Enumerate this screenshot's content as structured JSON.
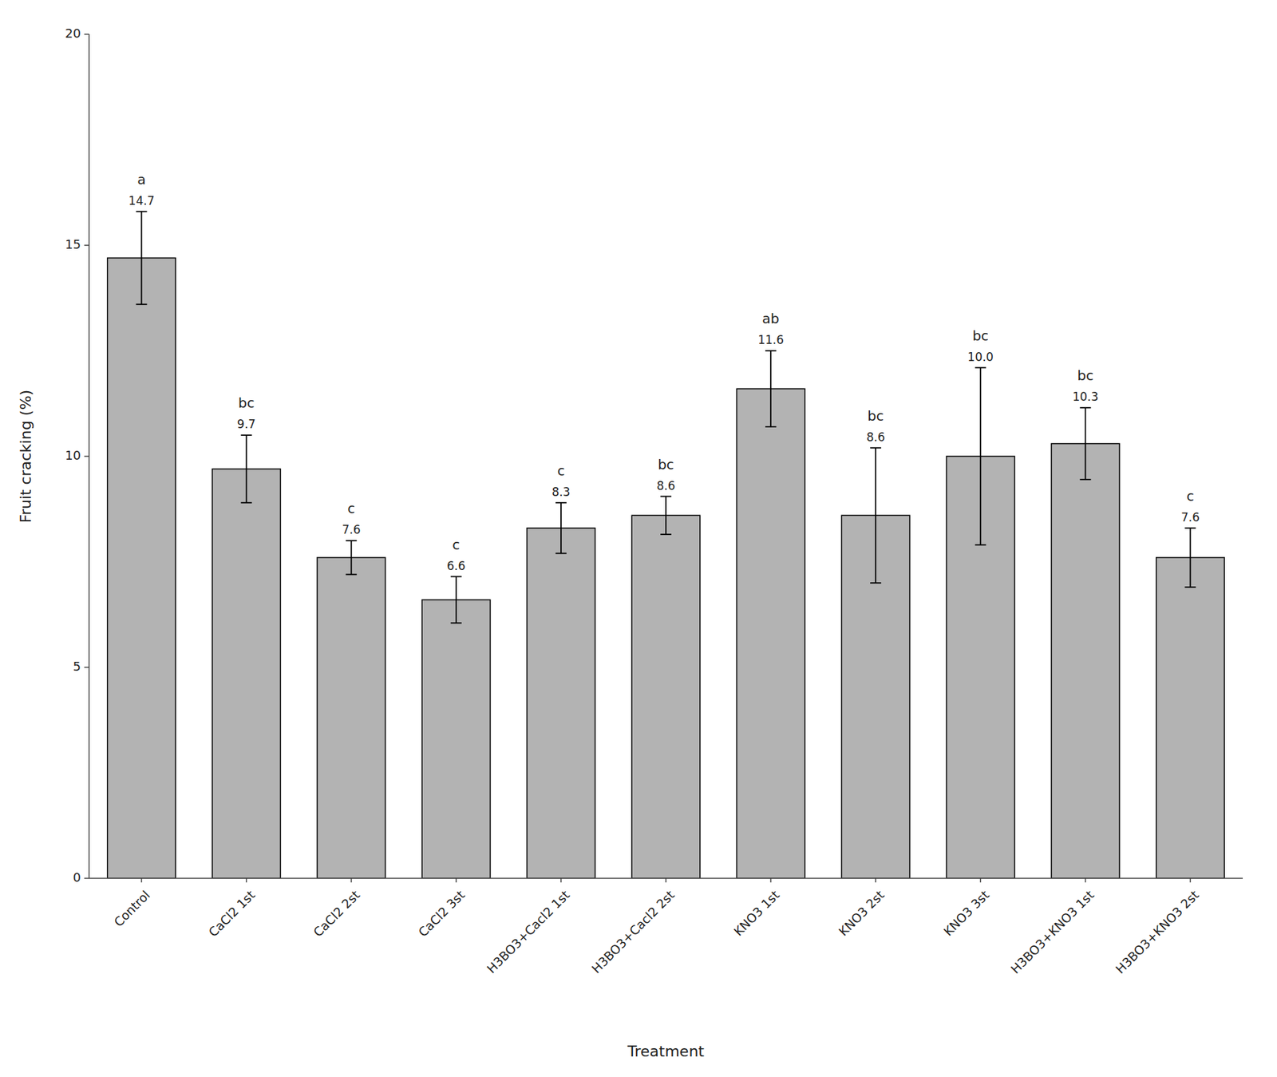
{
  "chart_data": {
    "type": "bar",
    "categories": [
      "Control",
      "CaCl2 1st",
      "CaCl2 2st",
      "CaCl2 3st",
      "H3BO3+Cacl2 1st",
      "H3BO3+Cacl2 2st",
      "KNO3 1st",
      "KNO3 2st",
      "KNO3 3st",
      "H3BO3+KNO3 1st",
      "H3BO3+KNO3 2st"
    ],
    "values": [
      14.7,
      9.7,
      7.6,
      6.6,
      8.3,
      8.6,
      11.6,
      8.6,
      10.0,
      10.3,
      7.6
    ],
    "value_labels": [
      "14.7",
      "9.7",
      "7.6",
      "6.6",
      "8.3",
      "8.6",
      "11.6",
      "8.6",
      "10.0",
      "10.3",
      "7.6"
    ],
    "errors": [
      1.1,
      0.8,
      0.4,
      0.55,
      0.6,
      0.45,
      0.9,
      1.6,
      2.1,
      0.85,
      0.7
    ],
    "annotations": [
      "a",
      "bc",
      "c",
      "c",
      "c",
      "bc",
      "ab",
      "bc",
      "bc",
      "bc",
      "c"
    ],
    "color": "#b3b3b3",
    "ylabel": "Fruit cracking (%)",
    "xlabel": "Treatment",
    "ylim": [
      0,
      20
    ],
    "yticks": [
      0,
      5,
      10,
      15,
      20
    ],
    "data_labels": true,
    "grid": false
  }
}
